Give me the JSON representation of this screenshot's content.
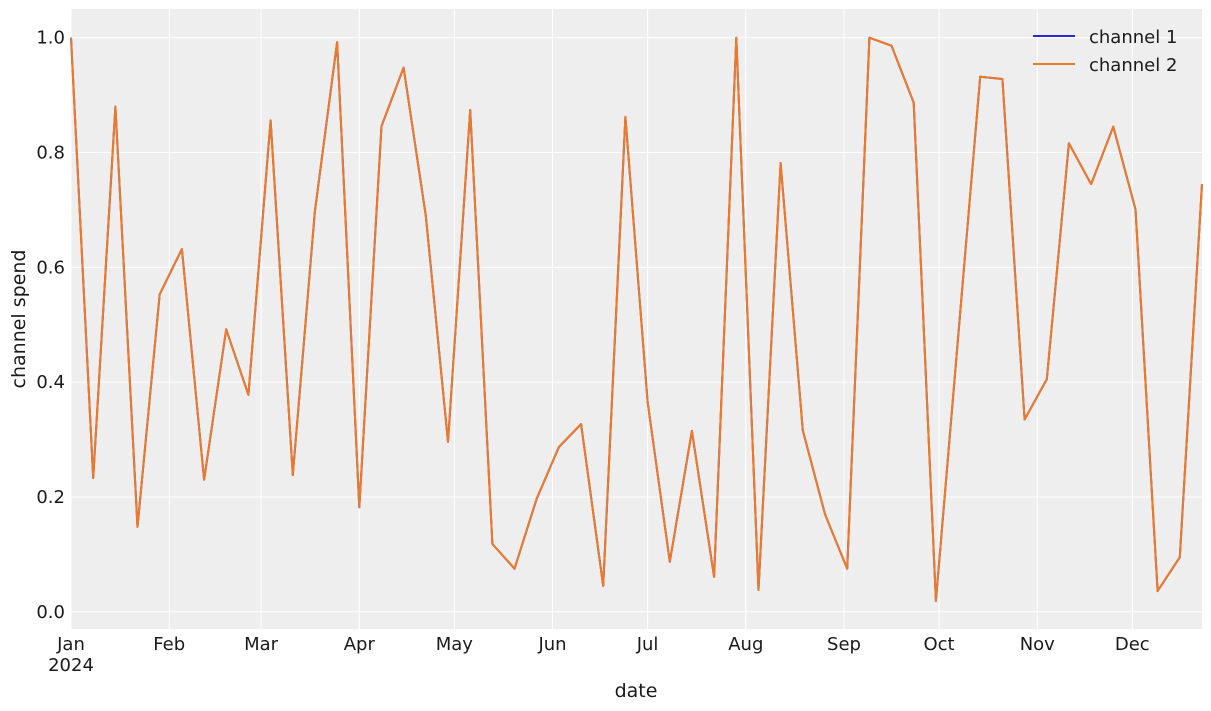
{
  "chart_data": {
    "type": "line",
    "title": "",
    "xlabel": "date",
    "ylabel": "channel spend",
    "xlim": [
      "2024-01-01",
      "2024-12-23"
    ],
    "ylim": [
      -0.03,
      1.05
    ],
    "grid": true,
    "legend_position": "top-right",
    "x_ticks": [
      {
        "date": "2024-01-01",
        "label": "Jan",
        "sublabel": "2024"
      },
      {
        "date": "2024-02-01",
        "label": "Feb"
      },
      {
        "date": "2024-03-01",
        "label": "Mar"
      },
      {
        "date": "2024-04-01",
        "label": "Apr"
      },
      {
        "date": "2024-05-01",
        "label": "May"
      },
      {
        "date": "2024-06-01",
        "label": "Jun"
      },
      {
        "date": "2024-07-01",
        "label": "Jul"
      },
      {
        "date": "2024-08-01",
        "label": "Aug"
      },
      {
        "date": "2024-09-01",
        "label": "Sep"
      },
      {
        "date": "2024-10-01",
        "label": "Oct"
      },
      {
        "date": "2024-11-01",
        "label": "Nov"
      },
      {
        "date": "2024-12-01",
        "label": "Dec"
      }
    ],
    "y_ticks": [
      {
        "value": 0.0,
        "label": "0.0"
      },
      {
        "value": 0.2,
        "label": "0.2"
      },
      {
        "value": 0.4,
        "label": "0.4"
      },
      {
        "value": 0.6,
        "label": "0.6"
      },
      {
        "value": 0.8,
        "label": "0.8"
      },
      {
        "value": 1.0,
        "label": "1.0"
      }
    ],
    "x": [
      "2024-01-01",
      "2024-01-08",
      "2024-01-15",
      "2024-01-22",
      "2024-01-29",
      "2024-02-05",
      "2024-02-12",
      "2024-02-19",
      "2024-02-26",
      "2024-03-04",
      "2024-03-11",
      "2024-03-18",
      "2024-03-25",
      "2024-04-01",
      "2024-04-08",
      "2024-04-15",
      "2024-04-22",
      "2024-04-29",
      "2024-05-06",
      "2024-05-13",
      "2024-05-20",
      "2024-05-27",
      "2024-06-03",
      "2024-06-10",
      "2024-06-17",
      "2024-06-24",
      "2024-07-01",
      "2024-07-08",
      "2024-07-15",
      "2024-07-22",
      "2024-07-29",
      "2024-08-05",
      "2024-08-12",
      "2024-08-19",
      "2024-08-26",
      "2024-09-02",
      "2024-09-09",
      "2024-09-16",
      "2024-09-23",
      "2024-09-30",
      "2024-10-07",
      "2024-10-14",
      "2024-10-21",
      "2024-10-28",
      "2024-11-04",
      "2024-11-11",
      "2024-11-18",
      "2024-11-25",
      "2024-12-02",
      "2024-12-09",
      "2024-12-16",
      "2024-12-23"
    ],
    "series": [
      {
        "name": "channel 1",
        "color": "#2a2ad6",
        "values": [
          1.0,
          0.233,
          0.88,
          0.148,
          0.553,
          0.632,
          0.23,
          0.492,
          0.378,
          0.856,
          0.238,
          0.698,
          0.992,
          0.182,
          0.846,
          0.948,
          0.69,
          0.296,
          0.874,
          0.118,
          0.075,
          0.197,
          0.287,
          0.327,
          0.045,
          0.862,
          0.366,
          0.087,
          0.315,
          0.061,
          1.0,
          0.038,
          0.782,
          0.316,
          0.17,
          0.075,
          1.0,
          0.986,
          0.887,
          0.019,
          0.478,
          0.932,
          0.928,
          0.335,
          0.405,
          0.816,
          0.745,
          0.845,
          0.701,
          0.036,
          0.095,
          0.745
        ]
      },
      {
        "name": "channel 2",
        "color": "#f07a24",
        "values": [
          1.0,
          0.233,
          0.88,
          0.148,
          0.553,
          0.632,
          0.23,
          0.492,
          0.378,
          0.856,
          0.238,
          0.698,
          0.992,
          0.182,
          0.846,
          0.948,
          0.69,
          0.296,
          0.874,
          0.118,
          0.075,
          0.197,
          0.287,
          0.327,
          0.045,
          0.862,
          0.366,
          0.087,
          0.315,
          0.061,
          1.0,
          0.038,
          0.782,
          0.316,
          0.17,
          0.075,
          1.0,
          0.986,
          0.887,
          0.019,
          0.478,
          0.932,
          0.928,
          0.335,
          0.405,
          0.816,
          0.745,
          0.845,
          0.701,
          0.036,
          0.095,
          0.745
        ]
      }
    ],
    "colors": {
      "plot_background": "#eeeeee",
      "grid": "#ffffff",
      "text": "#1a1a1a"
    }
  }
}
